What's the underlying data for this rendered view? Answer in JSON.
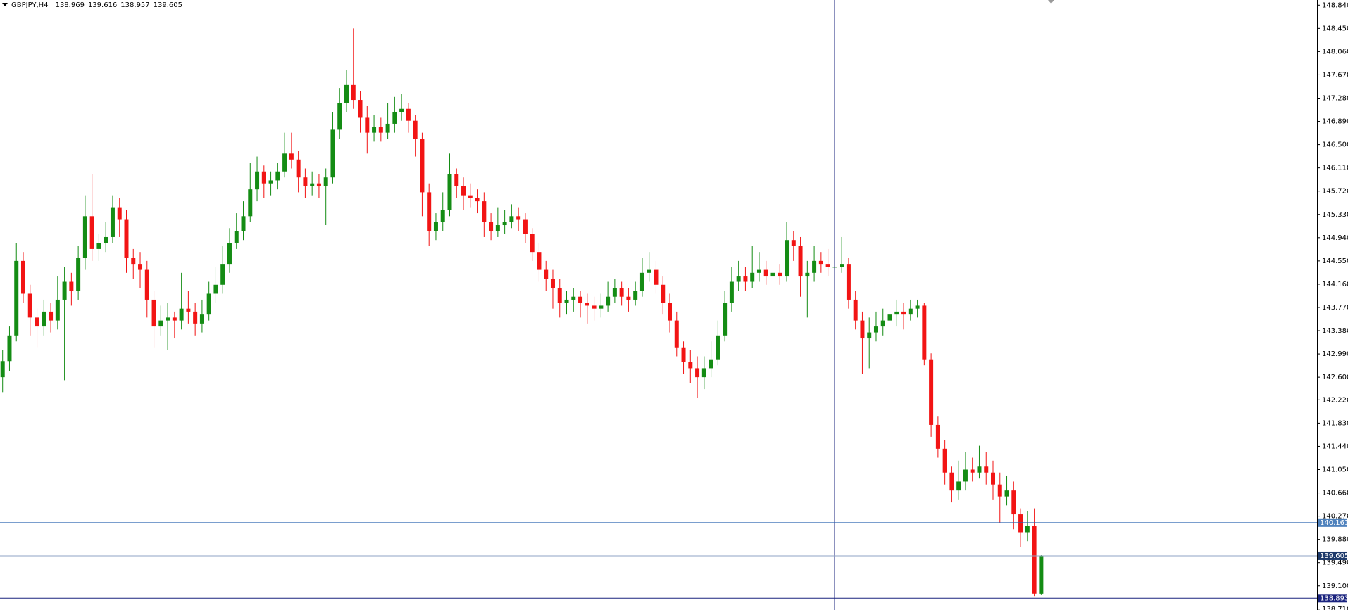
{
  "chart_data": {
    "type": "candlestick",
    "title": "GBPJPY,H4",
    "header_values": [
      138.969,
      139.616,
      138.957,
      139.605
    ],
    "up_color": "#148c14",
    "down_color": "#f21414",
    "ylim": [
      138.696,
      148.926
    ],
    "yticks": [
      {
        "value": 148.84,
        "label": "148.840"
      },
      {
        "value": 148.45,
        "label": "148.450"
      },
      {
        "value": 148.06,
        "label": "148.060"
      },
      {
        "value": 147.67,
        "label": "147.670"
      },
      {
        "value": 147.28,
        "label": "147.280"
      },
      {
        "value": 146.89,
        "label": "146.890"
      },
      {
        "value": 146.5,
        "label": "146.500"
      },
      {
        "value": 146.11,
        "label": "146.110"
      },
      {
        "value": 145.72,
        "label": "145.720"
      },
      {
        "value": 145.33,
        "label": "145.330"
      },
      {
        "value": 144.94,
        "label": "144.940"
      },
      {
        "value": 144.55,
        "label": "144.550"
      },
      {
        "value": 144.16,
        "label": "144.160"
      },
      {
        "value": 143.77,
        "label": "143.770"
      },
      {
        "value": 143.38,
        "label": "143.380"
      },
      {
        "value": 142.99,
        "label": "142.990"
      },
      {
        "value": 142.6,
        "label": "142.600"
      },
      {
        "value": 142.22,
        "label": "142.220"
      },
      {
        "value": 141.83,
        "label": "141.830"
      },
      {
        "value": 141.44,
        "label": "141.440"
      },
      {
        "value": 141.05,
        "label": "141.050"
      },
      {
        "value": 140.66,
        "label": "140.660"
      },
      {
        "value": 140.27,
        "label": "140.270"
      },
      {
        "value": 139.88,
        "label": "139.880"
      },
      {
        "value": 139.49,
        "label": "139.490"
      },
      {
        "value": 139.1,
        "label": "139.100"
      },
      {
        "value": 138.71,
        "label": "138.710"
      }
    ],
    "levels": [
      {
        "value": 140.161,
        "color": "#2a63b0",
        "box": "#4f82bd"
      },
      {
        "value": 139.605,
        "color": "#8fa3c4",
        "box": "#1d3a6b"
      },
      {
        "value": 138.893,
        "color": "#1a237e",
        "box": "#1a237e"
      }
    ],
    "ohlc": [
      [
        142.6,
        143.05,
        142.35,
        142.87
      ],
      [
        142.87,
        143.45,
        142.7,
        143.3
      ],
      [
        143.3,
        144.85,
        143.2,
        144.55
      ],
      [
        144.55,
        144.7,
        143.85,
        144.0
      ],
      [
        144.0,
        144.15,
        143.3,
        143.6
      ],
      [
        143.6,
        143.75,
        143.1,
        143.45
      ],
      [
        143.45,
        143.9,
        143.3,
        143.7
      ],
      [
        143.7,
        143.85,
        143.35,
        143.55
      ],
      [
        143.55,
        144.3,
        143.4,
        143.9
      ],
      [
        143.9,
        144.45,
        142.55,
        144.2
      ],
      [
        144.2,
        144.35,
        143.8,
        144.05
      ],
      [
        144.05,
        144.8,
        143.9,
        144.6
      ],
      [
        144.6,
        145.65,
        144.4,
        145.3
      ],
      [
        145.3,
        146.0,
        144.55,
        144.75
      ],
      [
        144.75,
        145.0,
        144.55,
        144.85
      ],
      [
        144.85,
        145.2,
        144.7,
        144.95
      ],
      [
        144.95,
        145.65,
        144.85,
        145.45
      ],
      [
        145.45,
        145.6,
        144.95,
        145.25
      ],
      [
        145.25,
        145.4,
        144.35,
        144.6
      ],
      [
        144.6,
        144.75,
        144.25,
        144.5
      ],
      [
        144.5,
        144.7,
        144.1,
        144.4
      ],
      [
        144.4,
        144.55,
        143.6,
        143.9
      ],
      [
        143.9,
        144.05,
        143.1,
        143.45
      ],
      [
        143.45,
        143.8,
        143.3,
        143.55
      ],
      [
        143.55,
        143.85,
        143.05,
        143.6
      ],
      [
        143.6,
        143.7,
        143.25,
        143.55
      ],
      [
        143.55,
        144.35,
        143.4,
        143.75
      ],
      [
        143.75,
        144.05,
        143.5,
        143.7
      ],
      [
        143.7,
        143.85,
        143.3,
        143.5
      ],
      [
        143.5,
        143.9,
        143.35,
        143.65
      ],
      [
        143.65,
        144.2,
        143.55,
        144.0
      ],
      [
        144.0,
        144.45,
        143.85,
        144.15
      ],
      [
        144.15,
        144.8,
        144.0,
        144.5
      ],
      [
        144.5,
        145.1,
        144.35,
        144.85
      ],
      [
        144.85,
        145.35,
        144.75,
        145.05
      ],
      [
        145.05,
        145.55,
        144.9,
        145.3
      ],
      [
        145.3,
        146.2,
        145.2,
        145.75
      ],
      [
        145.75,
        146.3,
        145.55,
        146.05
      ],
      [
        146.05,
        146.15,
        145.6,
        145.85
      ],
      [
        145.85,
        146.05,
        145.65,
        145.9
      ],
      [
        145.9,
        146.2,
        145.75,
        146.05
      ],
      [
        146.05,
        146.7,
        145.95,
        146.35
      ],
      [
        146.35,
        146.7,
        146.1,
        146.25
      ],
      [
        146.25,
        146.4,
        145.7,
        145.95
      ],
      [
        145.95,
        146.1,
        145.6,
        145.8
      ],
      [
        145.8,
        146.05,
        145.65,
        145.85
      ],
      [
        145.85,
        146.0,
        145.6,
        145.8
      ],
      [
        145.8,
        146.1,
        145.15,
        145.95
      ],
      [
        145.95,
        147.05,
        145.85,
        146.75
      ],
      [
        146.75,
        147.45,
        146.6,
        147.2
      ],
      [
        147.2,
        147.75,
        147.05,
        147.5
      ],
      [
        147.5,
        148.45,
        147.1,
        147.25
      ],
      [
        147.25,
        147.4,
        146.7,
        146.95
      ],
      [
        146.95,
        147.15,
        146.35,
        146.7
      ],
      [
        146.7,
        147.0,
        146.55,
        146.8
      ],
      [
        146.8,
        146.95,
        146.55,
        146.7
      ],
      [
        146.7,
        147.2,
        146.6,
        146.85
      ],
      [
        146.85,
        147.3,
        146.7,
        147.05
      ],
      [
        147.05,
        147.35,
        146.9,
        147.1
      ],
      [
        147.1,
        147.2,
        146.7,
        146.9
      ],
      [
        146.9,
        147.0,
        146.3,
        146.6
      ],
      [
        146.6,
        146.7,
        145.3,
        145.7
      ],
      [
        145.7,
        145.85,
        144.8,
        145.05
      ],
      [
        145.05,
        145.35,
        144.9,
        145.2
      ],
      [
        145.2,
        145.7,
        145.05,
        145.4
      ],
      [
        145.4,
        146.35,
        145.3,
        146.0
      ],
      [
        146.0,
        146.1,
        145.6,
        145.8
      ],
      [
        145.8,
        145.95,
        145.4,
        145.65
      ],
      [
        145.65,
        145.85,
        145.45,
        145.6
      ],
      [
        145.6,
        145.75,
        145.35,
        145.55
      ],
      [
        145.55,
        145.7,
        144.95,
        145.2
      ],
      [
        145.2,
        145.35,
        144.9,
        145.05
      ],
      [
        145.05,
        145.45,
        144.95,
        145.15
      ],
      [
        145.15,
        145.4,
        145.0,
        145.2
      ],
      [
        145.2,
        145.5,
        145.1,
        145.3
      ],
      [
        145.3,
        145.45,
        145.05,
        145.25
      ],
      [
        145.25,
        145.35,
        144.85,
        145.0
      ],
      [
        145.0,
        145.1,
        144.55,
        144.7
      ],
      [
        144.7,
        144.85,
        144.2,
        144.4
      ],
      [
        144.4,
        144.55,
        144.05,
        144.25
      ],
      [
        144.25,
        144.4,
        143.75,
        144.1
      ],
      [
        144.1,
        144.25,
        143.6,
        143.85
      ],
      [
        143.85,
        144.05,
        143.65,
        143.9
      ],
      [
        143.9,
        144.1,
        143.7,
        143.95
      ],
      [
        143.95,
        144.05,
        143.6,
        143.85
      ],
      [
        143.85,
        144.0,
        143.5,
        143.8
      ],
      [
        143.8,
        143.95,
        143.55,
        143.75
      ],
      [
        143.75,
        144.0,
        143.6,
        143.8
      ],
      [
        143.8,
        144.2,
        143.7,
        143.95
      ],
      [
        143.95,
        144.25,
        143.85,
        144.1
      ],
      [
        144.1,
        144.2,
        143.8,
        143.95
      ],
      [
        143.95,
        144.1,
        143.7,
        143.9
      ],
      [
        143.9,
        144.2,
        143.8,
        144.05
      ],
      [
        144.05,
        144.6,
        143.95,
        144.35
      ],
      [
        144.35,
        144.7,
        144.2,
        144.4
      ],
      [
        144.4,
        144.55,
        144.0,
        144.15
      ],
      [
        144.15,
        144.3,
        143.65,
        143.85
      ],
      [
        143.85,
        144.0,
        143.35,
        143.55
      ],
      [
        143.55,
        143.7,
        142.95,
        143.1
      ],
      [
        143.1,
        143.2,
        142.65,
        142.85
      ],
      [
        142.85,
        143.05,
        142.5,
        142.75
      ],
      [
        142.75,
        142.95,
        142.25,
        142.6
      ],
      [
        142.6,
        142.95,
        142.4,
        142.75
      ],
      [
        142.75,
        143.2,
        142.6,
        142.9
      ],
      [
        142.9,
        143.55,
        142.8,
        143.3
      ],
      [
        143.3,
        144.05,
        143.2,
        143.85
      ],
      [
        143.85,
        144.45,
        143.7,
        144.2
      ],
      [
        144.2,
        144.55,
        144.05,
        144.3
      ],
      [
        144.3,
        144.45,
        144.05,
        144.2
      ],
      [
        144.2,
        144.8,
        144.1,
        144.35
      ],
      [
        144.35,
        144.7,
        144.2,
        144.4
      ],
      [
        144.4,
        144.55,
        144.15,
        144.3
      ],
      [
        144.3,
        144.5,
        144.2,
        144.35
      ],
      [
        144.35,
        144.5,
        144.15,
        144.3
      ],
      [
        144.3,
        145.2,
        144.2,
        144.9
      ],
      [
        144.9,
        145.05,
        144.55,
        144.8
      ],
      [
        144.8,
        144.95,
        143.95,
        144.3
      ],
      [
        144.3,
        144.55,
        143.6,
        144.35
      ],
      [
        144.35,
        144.8,
        144.2,
        144.55
      ],
      [
        144.55,
        144.7,
        144.35,
        144.5
      ],
      [
        144.5,
        144.75,
        144.3,
        144.45
      ],
      [
        144.45,
        144.9,
        143.7,
        144.45
      ],
      [
        144.45,
        144.95,
        144.35,
        144.5
      ],
      [
        144.5,
        144.6,
        143.75,
        143.9
      ],
      [
        143.9,
        144.05,
        143.4,
        143.55
      ],
      [
        143.55,
        143.7,
        142.65,
        143.25
      ],
      [
        143.25,
        143.6,
        142.75,
        143.35
      ],
      [
        143.35,
        143.7,
        143.2,
        143.45
      ],
      [
        143.45,
        143.75,
        143.3,
        143.55
      ],
      [
        143.55,
        143.95,
        143.4,
        143.65
      ],
      [
        143.65,
        143.9,
        143.45,
        143.7
      ],
      [
        143.7,
        143.85,
        143.4,
        143.65
      ],
      [
        143.65,
        143.9,
        143.55,
        143.75
      ],
      [
        143.75,
        143.9,
        143.6,
        143.8
      ],
      [
        143.8,
        143.85,
        142.8,
        142.9
      ],
      [
        142.9,
        143.0,
        141.6,
        141.8
      ],
      [
        141.8,
        141.95,
        141.25,
        141.4
      ],
      [
        141.4,
        141.55,
        140.8,
        141.0
      ],
      [
        141.0,
        141.1,
        140.5,
        140.7
      ],
      [
        140.7,
        141.2,
        140.55,
        140.85
      ],
      [
        140.85,
        141.35,
        140.7,
        141.05
      ],
      [
        141.05,
        141.25,
        140.85,
        141.0
      ],
      [
        141.0,
        141.45,
        140.9,
        141.1
      ],
      [
        141.1,
        141.35,
        140.8,
        141.0
      ],
      [
        141.0,
        141.2,
        140.55,
        140.8
      ],
      [
        140.8,
        141.0,
        140.15,
        140.6
      ],
      [
        140.6,
        140.95,
        140.45,
        140.7
      ],
      [
        140.7,
        140.85,
        140.05,
        140.3
      ],
      [
        140.3,
        140.4,
        139.75,
        140.0
      ],
      [
        140.0,
        140.35,
        139.85,
        140.1
      ],
      [
        140.1,
        140.4,
        138.93,
        138.97
      ],
      [
        138.969,
        139.616,
        138.957,
        139.605
      ]
    ]
  }
}
